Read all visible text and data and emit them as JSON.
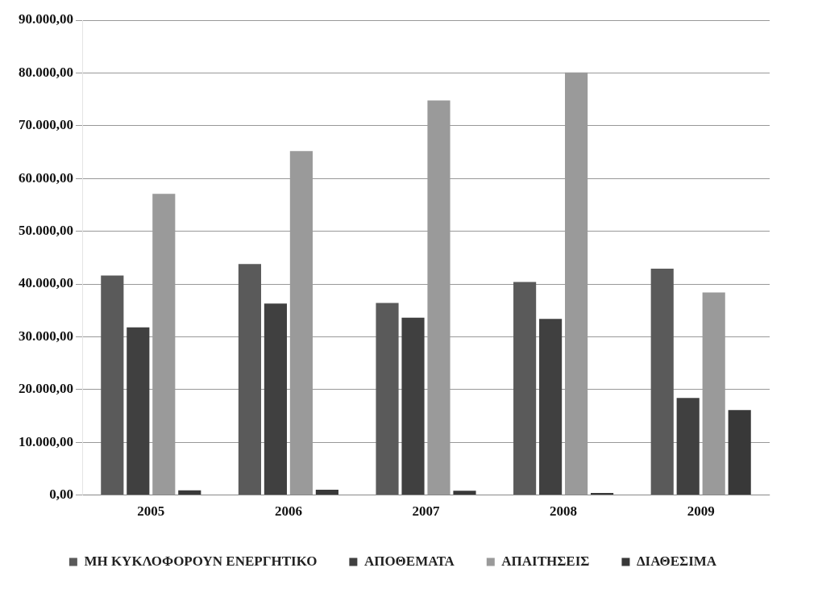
{
  "chart_data": {
    "type": "bar",
    "categories": [
      "2005",
      "2006",
      "2007",
      "2008",
      "2009"
    ],
    "series": [
      {
        "name": "ΜΗ ΚΥΚΛΟΦΟΡΟΥΝ ΕΝΕΡΓΗΤΙΚΟ",
        "color": "#5a5a5a",
        "values": [
          41600,
          43800,
          36400,
          40400,
          42900
        ]
      },
      {
        "name": "ΑΠΟΘΕΜΑΤΑ",
        "color": "#404040",
        "values": [
          31800,
          36300,
          33600,
          33400,
          18400
        ]
      },
      {
        "name": "ΑΠΑΙΤΗΣΕΙΣ",
        "color": "#9a9a9a",
        "values": [
          57100,
          65200,
          74800,
          80100,
          38400
        ]
      },
      {
        "name": "ΔΙΑΘΕΣΙΜΑ",
        "color": "#383838",
        "values": [
          900,
          1000,
          800,
          400,
          16100
        ]
      }
    ],
    "ylim": [
      0,
      90000
    ],
    "yticks": [
      {
        "value": 0,
        "label": "0,00"
      },
      {
        "value": 10000,
        "label": "10.000,00"
      },
      {
        "value": 20000,
        "label": "20.000,00"
      },
      {
        "value": 30000,
        "label": "30.000,00"
      },
      {
        "value": 40000,
        "label": "40.000,00"
      },
      {
        "value": 50000,
        "label": "50.000,00"
      },
      {
        "value": 60000,
        "label": "60.000,00"
      },
      {
        "value": 70000,
        "label": "70.000,00"
      },
      {
        "value": 80000,
        "label": "80.000,00"
      },
      {
        "value": 90000,
        "label": "90.000,00"
      }
    ],
    "grid": "y",
    "legend": "bottom"
  }
}
